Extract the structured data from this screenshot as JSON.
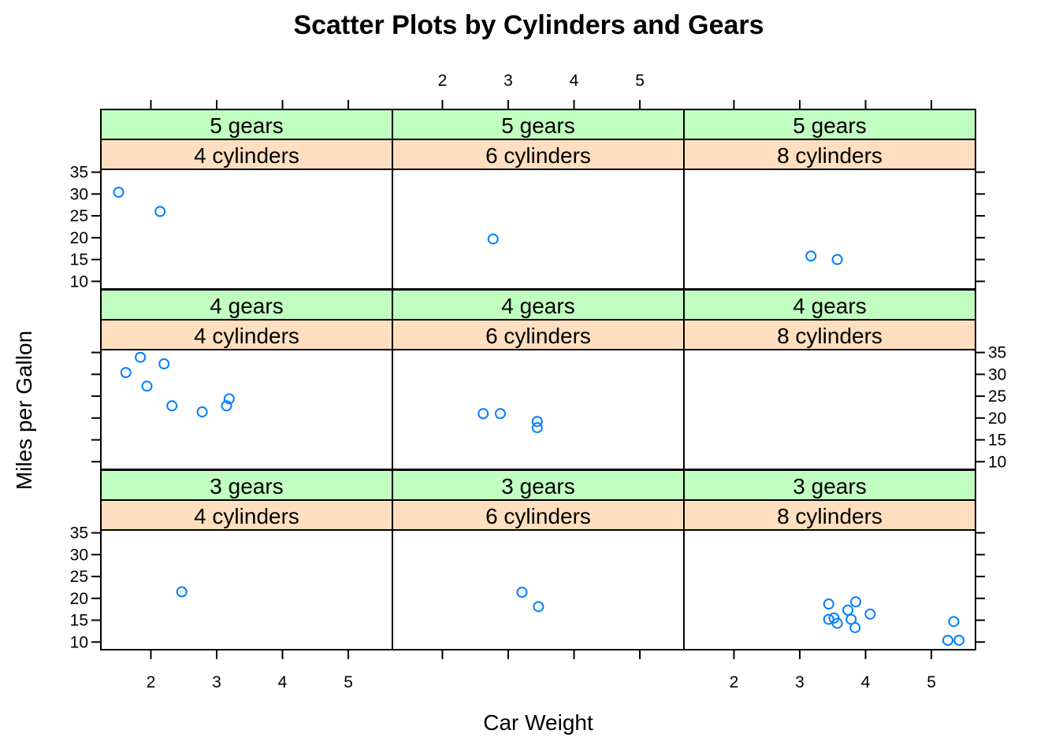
{
  "chart_data": {
    "type": "scatter",
    "title": "Scatter Plots by Cylinders and Gears",
    "xlabel": "Car Weight",
    "ylabel": "Miles per Gallon",
    "xlim": [
      1.24,
      5.67
    ],
    "ylim": [
      8.25,
      35.65
    ],
    "xticks": [
      2,
      3,
      4,
      5
    ],
    "yticks": [
      10,
      15,
      20,
      25,
      30,
      35
    ],
    "colors": {
      "point": "#0080ff",
      "gear_strip": "#c1ffc1",
      "cyl_strip": "#ffdfbf"
    },
    "rows": [
      "5 gears",
      "4 gears",
      "3 gears"
    ],
    "columns": [
      "4 cylinders",
      "6 cylinders",
      "8 cylinders"
    ],
    "panels": [
      {
        "gear": "5 gears",
        "cyl": "4 cylinders",
        "points": [
          [
            1.51,
            30.4
          ],
          [
            2.14,
            26.0
          ]
        ]
      },
      {
        "gear": "5 gears",
        "cyl": "6 cylinders",
        "points": [
          [
            2.77,
            19.7
          ]
        ]
      },
      {
        "gear": "5 gears",
        "cyl": "8 cylinders",
        "points": [
          [
            3.17,
            15.8
          ],
          [
            3.57,
            15.0
          ]
        ]
      },
      {
        "gear": "4 gears",
        "cyl": "4 cylinders",
        "points": [
          [
            1.62,
            30.4
          ],
          [
            1.84,
            33.9
          ],
          [
            1.94,
            27.3
          ],
          [
            2.2,
            32.4
          ],
          [
            2.32,
            22.8
          ],
          [
            2.78,
            21.4
          ],
          [
            3.15,
            22.8
          ],
          [
            3.19,
            24.4
          ]
        ]
      },
      {
        "gear": "4 gears",
        "cyl": "6 cylinders",
        "points": [
          [
            2.62,
            21.0
          ],
          [
            2.88,
            21.0
          ],
          [
            3.44,
            19.2
          ],
          [
            3.44,
            17.8
          ]
        ]
      },
      {
        "gear": "4 gears",
        "cyl": "8 cylinders",
        "points": []
      },
      {
        "gear": "3 gears",
        "cyl": "4 cylinders",
        "points": [
          [
            2.47,
            21.5
          ]
        ]
      },
      {
        "gear": "3 gears",
        "cyl": "6 cylinders",
        "points": [
          [
            3.21,
            21.4
          ],
          [
            3.46,
            18.1
          ]
        ]
      },
      {
        "gear": "3 gears",
        "cyl": "8 cylinders",
        "points": [
          [
            3.44,
            18.7
          ],
          [
            3.44,
            15.2
          ],
          [
            3.52,
            15.5
          ],
          [
            3.57,
            14.3
          ],
          [
            3.73,
            17.3
          ],
          [
            3.78,
            15.2
          ],
          [
            3.84,
            13.3
          ],
          [
            3.85,
            19.2
          ],
          [
            4.07,
            16.4
          ],
          [
            5.25,
            10.4
          ],
          [
            5.34,
            14.7
          ],
          [
            5.42,
            10.4
          ]
        ]
      }
    ]
  }
}
